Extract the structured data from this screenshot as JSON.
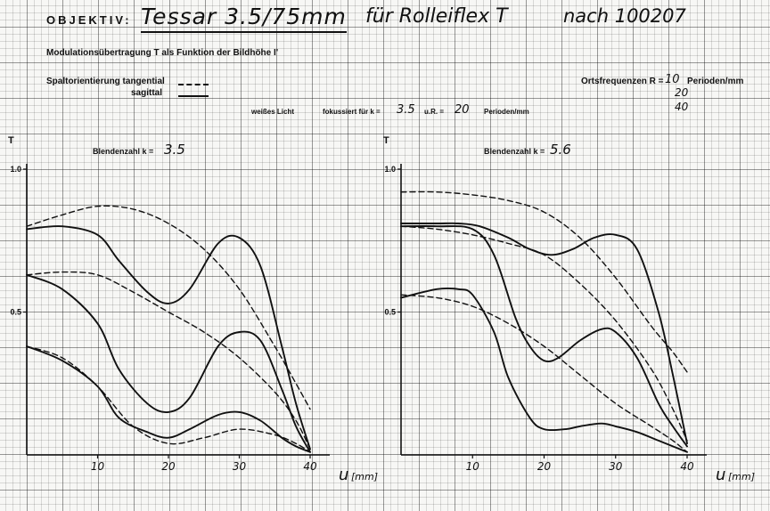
{
  "header": {
    "label": "OBJEKTIV:",
    "lens": "Tessar 3.5/75mm",
    "camera": "für Rolleiflex T",
    "serial": "nach 100207"
  },
  "subtitle": "Modulationsübertragung T als Funktion der Bildhöhe I'",
  "legend": {
    "tangential": "Spaltorientierung tangential",
    "sagittal": "sagittal",
    "tangential_style": "dashed",
    "sagittal_style": "solid"
  },
  "frequencies": {
    "label": "Ortsfrequenzen R =",
    "unit": "Perioden/mm",
    "values": [
      "10",
      "20",
      "40"
    ]
  },
  "conditions": {
    "light": "weißes Licht",
    "focus_label": "fokussiert für k =",
    "k": "3.5",
    "ur_label": "u.R. =",
    "r": "20",
    "unit": "Perioden/mm"
  },
  "chart_data": [
    {
      "type": "line",
      "title": "Blendenzahl k =",
      "title_value": "3.5",
      "ylabel": "T",
      "xlabel": "u",
      "xunit": "[mm]",
      "xlim": [
        0,
        40
      ],
      "ylim": [
        0,
        1
      ],
      "xticks": [
        "10",
        "20",
        "30",
        "40"
      ],
      "yticks": [
        "0.5",
        "1.0"
      ],
      "grid": true,
      "series": [
        {
          "style": "dashed",
          "x": [
            0,
            5,
            10,
            15,
            20,
            25,
            30,
            35,
            38,
            40
          ],
          "values": [
            0.8,
            0.84,
            0.87,
            0.86,
            0.81,
            0.72,
            0.58,
            0.38,
            0.25,
            0.16
          ]
        },
        {
          "style": "dashed",
          "x": [
            0,
            5,
            10,
            15,
            20,
            25,
            30,
            35,
            38,
            40
          ],
          "values": [
            0.63,
            0.64,
            0.63,
            0.57,
            0.5,
            0.43,
            0.34,
            0.22,
            0.12,
            0.02
          ]
        },
        {
          "style": "dashed",
          "x": [
            0,
            5,
            10,
            15,
            20,
            25,
            30,
            35,
            38,
            40
          ],
          "values": [
            0.38,
            0.34,
            0.24,
            0.1,
            0.04,
            0.06,
            0.09,
            0.07,
            0.04,
            0.01
          ]
        },
        {
          "style": "solid",
          "x": [
            0,
            5,
            10,
            13,
            17,
            20,
            23,
            27,
            30,
            33,
            36,
            38,
            40
          ],
          "values": [
            0.79,
            0.8,
            0.77,
            0.68,
            0.57,
            0.53,
            0.58,
            0.74,
            0.76,
            0.66,
            0.38,
            0.18,
            0.02
          ]
        },
        {
          "style": "solid",
          "x": [
            0,
            5,
            10,
            13,
            17,
            20,
            23,
            27,
            30,
            33,
            36,
            38,
            40
          ],
          "values": [
            0.63,
            0.58,
            0.46,
            0.3,
            0.18,
            0.15,
            0.2,
            0.38,
            0.43,
            0.4,
            0.23,
            0.1,
            0.01
          ]
        },
        {
          "style": "solid",
          "x": [
            0,
            5,
            10,
            13,
            17,
            20,
            23,
            27,
            30,
            33,
            36,
            38,
            40
          ],
          "values": [
            0.38,
            0.33,
            0.24,
            0.13,
            0.08,
            0.06,
            0.09,
            0.14,
            0.15,
            0.12,
            0.06,
            0.03,
            0.01
          ]
        }
      ]
    },
    {
      "type": "line",
      "title": "Blendenzahl k =",
      "title_value": "5.6",
      "ylabel": "T",
      "xlabel": "u",
      "xunit": "[mm]",
      "xlim": [
        0,
        40
      ],
      "ylim": [
        0,
        1
      ],
      "xticks": [
        "10",
        "20",
        "30",
        "40"
      ],
      "yticks": [
        "0.5",
        "1.0"
      ],
      "grid": true,
      "series": [
        {
          "style": "dashed",
          "x": [
            0,
            5,
            10,
            15,
            20,
            25,
            30,
            35,
            38,
            40
          ],
          "values": [
            0.92,
            0.92,
            0.91,
            0.89,
            0.85,
            0.76,
            0.62,
            0.45,
            0.36,
            0.29
          ]
        },
        {
          "style": "dashed",
          "x": [
            0,
            5,
            10,
            15,
            20,
            25,
            30,
            35,
            38,
            40
          ],
          "values": [
            0.8,
            0.79,
            0.77,
            0.74,
            0.7,
            0.6,
            0.47,
            0.3,
            0.16,
            0.05
          ]
        },
        {
          "style": "dashed",
          "x": [
            0,
            5,
            10,
            15,
            20,
            25,
            30,
            35,
            38,
            40
          ],
          "values": [
            0.56,
            0.55,
            0.52,
            0.46,
            0.38,
            0.28,
            0.18,
            0.1,
            0.05,
            0.01
          ]
        },
        {
          "style": "solid",
          "x": [
            0,
            5,
            8,
            11,
            15,
            18,
            21,
            24,
            27,
            30,
            33,
            36,
            38,
            40
          ],
          "values": [
            0.81,
            0.81,
            0.81,
            0.8,
            0.76,
            0.72,
            0.7,
            0.72,
            0.76,
            0.77,
            0.72,
            0.5,
            0.28,
            0.04
          ]
        },
        {
          "style": "solid",
          "x": [
            0,
            5,
            10,
            13,
            16,
            18,
            20,
            22,
            25,
            28,
            30,
            33,
            36,
            38,
            40
          ],
          "values": [
            0.8,
            0.8,
            0.79,
            0.7,
            0.48,
            0.38,
            0.33,
            0.34,
            0.4,
            0.44,
            0.43,
            0.34,
            0.18,
            0.1,
            0.03
          ]
        },
        {
          "style": "solid",
          "x": [
            0,
            5,
            8,
            10,
            13,
            15,
            18,
            20,
            23,
            25,
            28,
            30,
            33,
            36,
            38,
            40
          ],
          "values": [
            0.55,
            0.58,
            0.58,
            0.56,
            0.43,
            0.27,
            0.13,
            0.09,
            0.09,
            0.1,
            0.11,
            0.1,
            0.08,
            0.05,
            0.03,
            0.01
          ]
        }
      ]
    }
  ]
}
